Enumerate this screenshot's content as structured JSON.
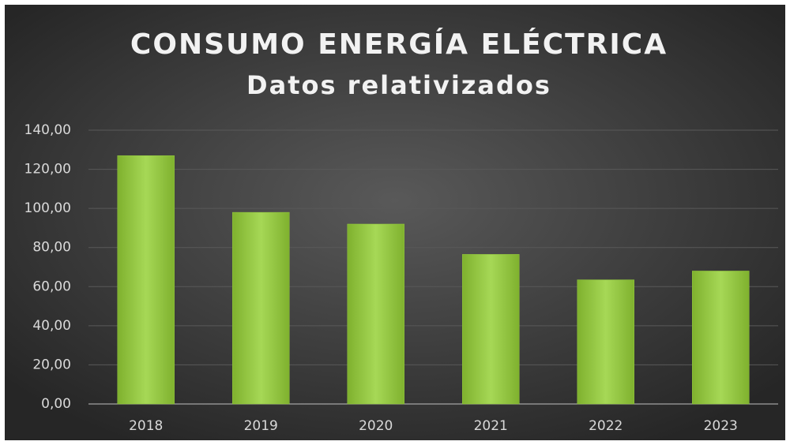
{
  "chart_data": {
    "type": "bar",
    "title": "CONSUMO ENERGÍA ELÉCTRICA",
    "subtitle": "Datos relativizados",
    "categories": [
      "2018",
      "2019",
      "2020",
      "2021",
      "2022",
      "2023"
    ],
    "values": [
      127,
      98,
      92,
      76.5,
      63.5,
      68
    ],
    "color": "#92c83e",
    "ylim": [
      0,
      140
    ],
    "yticks": [
      {
        "value": 0,
        "label": "0,00"
      },
      {
        "value": 20,
        "label": "20,00"
      },
      {
        "value": 40,
        "label": "40,00"
      },
      {
        "value": 60,
        "label": "60,00"
      },
      {
        "value": 80,
        "label": "80,00"
      },
      {
        "value": 100,
        "label": "100,00"
      },
      {
        "value": 120,
        "label": "120,00"
      },
      {
        "value": 140,
        "label": "140,00"
      }
    ],
    "grid": true
  }
}
